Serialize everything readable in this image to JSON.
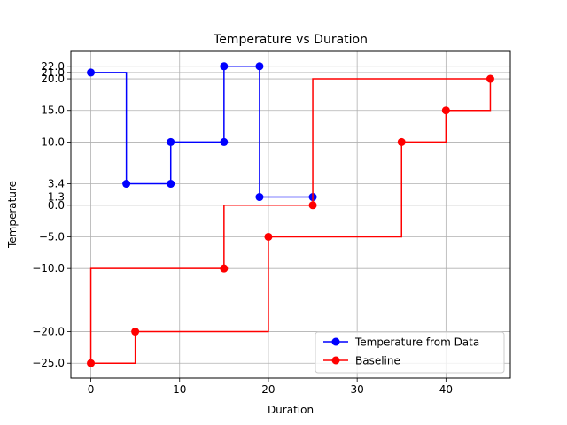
{
  "chart_data": {
    "type": "line",
    "title": "Temperature vs Duration",
    "xlabel": "Duration",
    "ylabel": "Temperature",
    "xlim": [
      -2.25,
      47.25
    ],
    "ylim": [
      -27.35,
      24.35
    ],
    "xticks": [
      0,
      10,
      20,
      30,
      40
    ],
    "yticks": [
      -25.0,
      -20.0,
      -10.0,
      -5.0,
      0.0,
      1.3,
      3.4,
      10.0,
      15.0,
      20.0,
      21.0,
      22.0
    ],
    "xtick_labels": [
      "0",
      "10",
      "20",
      "30",
      "40"
    ],
    "ytick_labels": [
      "−25.0",
      "−20.0",
      "−10.0",
      "−5.0",
      "0.0",
      "1.3",
      "3.4",
      "10.0",
      "15.0",
      "20.0",
      "21.0",
      "22.0"
    ],
    "grid": true,
    "legend_position": "lower-right",
    "series": [
      {
        "name": "Temperature from Data",
        "color": "#0000ff",
        "step": "post",
        "x": [
          0,
          4,
          9,
          15,
          19,
          25
        ],
        "y": [
          21.0,
          3.4,
          10.0,
          22.0,
          1.3,
          1.3
        ],
        "markers": [
          [
            0,
            21.0
          ],
          [
            4,
            3.4
          ],
          [
            9,
            3.4
          ],
          [
            9,
            10.0
          ],
          [
            15,
            10.0
          ],
          [
            15,
            22.0
          ],
          [
            19,
            22.0
          ],
          [
            19,
            1.3
          ],
          [
            25,
            1.3
          ]
        ]
      },
      {
        "name": "Baseline",
        "color": "#ff0000",
        "step": "post",
        "x": [
          0,
          5,
          20,
          35,
          40,
          45,
          25,
          15,
          0
        ],
        "y": [
          -25.0,
          -20.0,
          -5.0,
          10.0,
          15.0,
          20.0,
          0.0,
          -10.0,
          -25.0
        ],
        "markers": [
          [
            0,
            -25.0
          ],
          [
            5,
            -20.0
          ],
          [
            20,
            -5.0
          ],
          [
            35,
            10.0
          ],
          [
            40,
            15.0
          ],
          [
            45,
            20.0
          ],
          [
            25,
            0.0
          ],
          [
            15,
            -10.0
          ]
        ]
      }
    ]
  }
}
